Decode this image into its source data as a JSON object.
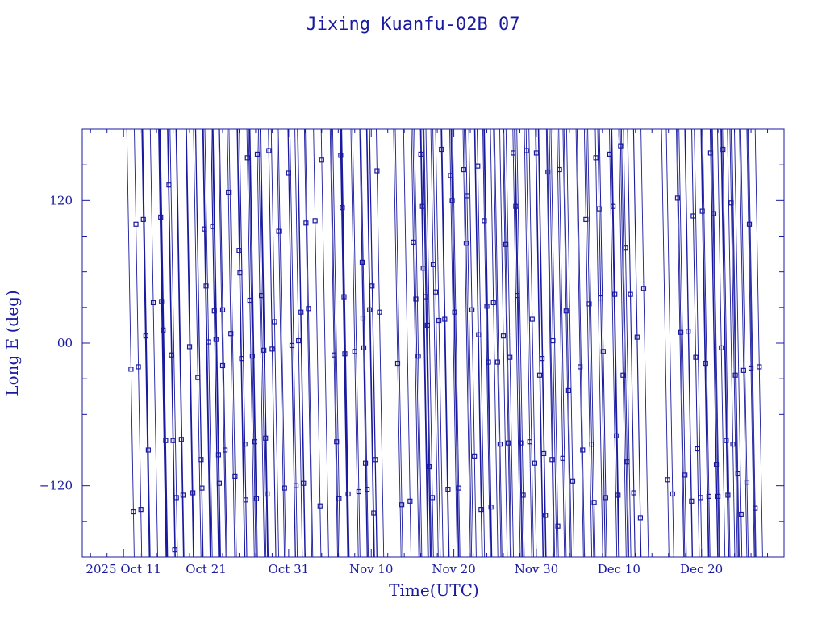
{
  "chart_data": {
    "type": "scatter",
    "title": "Jixing Kuanfu-02B 07",
    "xlabel": "Time(UTC)",
    "ylabel": "Long E (deg)",
    "x_ticks": [
      {
        "value": 0,
        "label": "2025 Oct 11"
      },
      {
        "value": 10,
        "label": "Oct 21"
      },
      {
        "value": 20,
        "label": "Oct 31"
      },
      {
        "value": 30,
        "label": "Nov 10"
      },
      {
        "value": 40,
        "label": "Nov 20"
      },
      {
        "value": 50,
        "label": "Nov 30"
      },
      {
        "value": 60,
        "label": "Dec 10"
      },
      {
        "value": 70,
        "label": "Dec 20"
      }
    ],
    "y_ticks": [
      {
        "value": 120,
        "label": "120"
      },
      {
        "value": 0,
        "label": "00"
      },
      {
        "value": -120,
        "label": "−120"
      }
    ],
    "xlim": [
      -5,
      80
    ],
    "ylim": [
      -180,
      180
    ],
    "grid": false,
    "color": "#1a1aa0",
    "series": [
      {
        "note_points": "day offset from Oct 11 vs longitude east; sampled markers with wrapping descending tracks",
        "points": [
          [
            0.9,
            -22
          ],
          [
            1.2,
            -142
          ],
          [
            1.5,
            100
          ],
          [
            1.8,
            -20
          ],
          [
            2.1,
            -140
          ],
          [
            2.4,
            104
          ],
          [
            2.7,
            6
          ],
          [
            3.0,
            -90
          ],
          [
            3.6,
            34
          ],
          [
            4.5,
            106
          ],
          [
            4.6,
            35
          ],
          [
            4.8,
            11
          ],
          [
            5.1,
            -82
          ],
          [
            5.5,
            133
          ],
          [
            5.8,
            -10
          ],
          [
            6.0,
            -82
          ],
          [
            6.2,
            -174
          ],
          [
            6.4,
            -130
          ],
          [
            7.0,
            -81
          ],
          [
            7.2,
            -128
          ],
          [
            8.0,
            -3
          ],
          [
            8.4,
            -126
          ],
          [
            9.0,
            -29
          ],
          [
            9.4,
            -98
          ],
          [
            9.5,
            -122
          ],
          [
            9.8,
            96
          ],
          [
            10.0,
            48
          ],
          [
            10.3,
            1
          ],
          [
            10.8,
            98
          ],
          [
            11.0,
            27
          ],
          [
            11.2,
            3
          ],
          [
            11.5,
            -94
          ],
          [
            11.6,
            -118
          ],
          [
            12.0,
            28
          ],
          [
            12.0,
            -19
          ],
          [
            12.3,
            -90
          ],
          [
            12.7,
            127
          ],
          [
            13.0,
            8
          ],
          [
            13.5,
            -112
          ],
          [
            14.0,
            78
          ],
          [
            14.1,
            59
          ],
          [
            14.3,
            -13
          ],
          [
            14.7,
            -85
          ],
          [
            14.8,
            -132
          ],
          [
            15.0,
            156
          ],
          [
            15.3,
            36
          ],
          [
            15.6,
            -11
          ],
          [
            15.9,
            -83
          ],
          [
            16.1,
            -131
          ],
          [
            16.2,
            159
          ],
          [
            16.7,
            40
          ],
          [
            17.0,
            -6
          ],
          [
            17.2,
            -80
          ],
          [
            17.4,
            -127
          ],
          [
            17.6,
            162
          ],
          [
            18.0,
            -5
          ],
          [
            18.3,
            18
          ],
          [
            18.8,
            94
          ],
          [
            19.5,
            -122
          ],
          [
            20.0,
            143
          ],
          [
            20.4,
            -2
          ],
          [
            20.9,
            -120
          ],
          [
            21.2,
            2
          ],
          [
            21.5,
            26
          ],
          [
            21.8,
            -118
          ],
          [
            22.1,
            101
          ],
          [
            22.4,
            29
          ],
          [
            23.2,
            103
          ],
          [
            23.8,
            -137
          ],
          [
            24.0,
            154
          ],
          [
            25.5,
            -10
          ],
          [
            25.8,
            -83
          ],
          [
            26.1,
            -131
          ],
          [
            26.3,
            158
          ],
          [
            26.5,
            114
          ],
          [
            26.7,
            39
          ],
          [
            26.8,
            -9
          ],
          [
            27.2,
            -127
          ],
          [
            28.0,
            -7
          ],
          [
            28.5,
            -125
          ],
          [
            28.9,
            68
          ],
          [
            29.0,
            21
          ],
          [
            29.1,
            -4
          ],
          [
            29.3,
            -101
          ],
          [
            29.5,
            -123
          ],
          [
            29.8,
            28
          ],
          [
            30.1,
            48
          ],
          [
            30.3,
            -143
          ],
          [
            30.5,
            -98
          ],
          [
            30.7,
            145
          ],
          [
            31.0,
            26
          ],
          [
            33.2,
            -17
          ],
          [
            33.7,
            -136
          ],
          [
            34.7,
            -133
          ],
          [
            35.1,
            85
          ],
          [
            35.4,
            37
          ],
          [
            35.7,
            -11
          ],
          [
            36.0,
            159
          ],
          [
            36.2,
            115
          ],
          [
            36.3,
            63
          ],
          [
            36.6,
            39
          ],
          [
            36.8,
            15
          ],
          [
            37.0,
            -104
          ],
          [
            37.4,
            -130
          ],
          [
            37.5,
            66
          ],
          [
            37.8,
            43
          ],
          [
            38.2,
            19
          ],
          [
            38.5,
            163
          ],
          [
            38.9,
            20
          ],
          [
            39.3,
            -123
          ],
          [
            39.6,
            141
          ],
          [
            39.8,
            120
          ],
          [
            40.1,
            26
          ],
          [
            40.6,
            -122
          ],
          [
            41.2,
            146
          ],
          [
            41.5,
            84
          ],
          [
            41.6,
            124
          ],
          [
            42.2,
            28
          ],
          [
            42.5,
            -95
          ],
          [
            42.9,
            149
          ],
          [
            43.0,
            7
          ],
          [
            43.3,
            -140
          ],
          [
            43.7,
            103
          ],
          [
            44.0,
            31
          ],
          [
            44.2,
            -16
          ],
          [
            44.5,
            -138
          ],
          [
            44.8,
            34
          ],
          [
            45.3,
            -16
          ],
          [
            45.6,
            -85
          ],
          [
            46.0,
            6
          ],
          [
            46.3,
            83
          ],
          [
            46.6,
            -84
          ],
          [
            46.8,
            -12
          ],
          [
            47.2,
            160
          ],
          [
            47.5,
            115
          ],
          [
            47.7,
            40
          ],
          [
            48.1,
            -84
          ],
          [
            48.4,
            -128
          ],
          [
            48.8,
            162
          ],
          [
            49.2,
            -83
          ],
          [
            49.5,
            20
          ],
          [
            49.8,
            -101
          ],
          [
            50.0,
            160
          ],
          [
            50.4,
            -27
          ],
          [
            50.7,
            -13
          ],
          [
            50.9,
            -93
          ],
          [
            51.1,
            -145
          ],
          [
            51.4,
            144
          ],
          [
            51.9,
            -98
          ],
          [
            52.0,
            2
          ],
          [
            52.6,
            -154
          ],
          [
            52.8,
            146
          ],
          [
            53.2,
            -97
          ],
          [
            53.6,
            27
          ],
          [
            53.9,
            -40
          ],
          [
            54.4,
            -116
          ],
          [
            55.3,
            -20
          ],
          [
            55.6,
            -90
          ],
          [
            56.0,
            104
          ],
          [
            56.4,
            33
          ],
          [
            56.7,
            -85
          ],
          [
            57.0,
            -134
          ],
          [
            57.2,
            156
          ],
          [
            57.6,
            113
          ],
          [
            57.8,
            38
          ],
          [
            58.1,
            -7
          ],
          [
            58.4,
            -130
          ],
          [
            58.9,
            159
          ],
          [
            59.3,
            115
          ],
          [
            59.5,
            41
          ],
          [
            59.7,
            -78
          ],
          [
            59.9,
            -128
          ],
          [
            60.2,
            166
          ],
          [
            60.5,
            -27
          ],
          [
            60.8,
            80
          ],
          [
            61.0,
            -100
          ],
          [
            61.4,
            41
          ],
          [
            61.8,
            -126
          ],
          [
            62.2,
            5
          ],
          [
            62.6,
            -147
          ],
          [
            63.0,
            46
          ],
          [
            65.9,
            -115
          ],
          [
            66.5,
            -127
          ],
          [
            67.1,
            122
          ],
          [
            67.5,
            9
          ],
          [
            68.0,
            -111
          ],
          [
            68.4,
            10
          ],
          [
            68.8,
            -133
          ],
          [
            69.0,
            107
          ],
          [
            69.3,
            -12
          ],
          [
            69.5,
            -89
          ],
          [
            69.9,
            -130
          ],
          [
            70.1,
            111
          ],
          [
            70.5,
            -17
          ],
          [
            70.9,
            -129
          ],
          [
            71.1,
            160
          ],
          [
            71.5,
            109
          ],
          [
            71.8,
            -102
          ],
          [
            72.0,
            -129
          ],
          [
            72.4,
            -4
          ],
          [
            72.6,
            163
          ],
          [
            73.0,
            -82
          ],
          [
            73.2,
            -128
          ],
          [
            73.6,
            118
          ],
          [
            73.8,
            -85
          ],
          [
            74.1,
            -27
          ],
          [
            74.4,
            -110
          ],
          [
            74.8,
            -144
          ],
          [
            75.1,
            -23
          ],
          [
            75.5,
            -117
          ],
          [
            75.8,
            100
          ],
          [
            76.0,
            -21
          ],
          [
            76.5,
            -139
          ],
          [
            77.0,
            -20
          ]
        ]
      }
    ]
  }
}
